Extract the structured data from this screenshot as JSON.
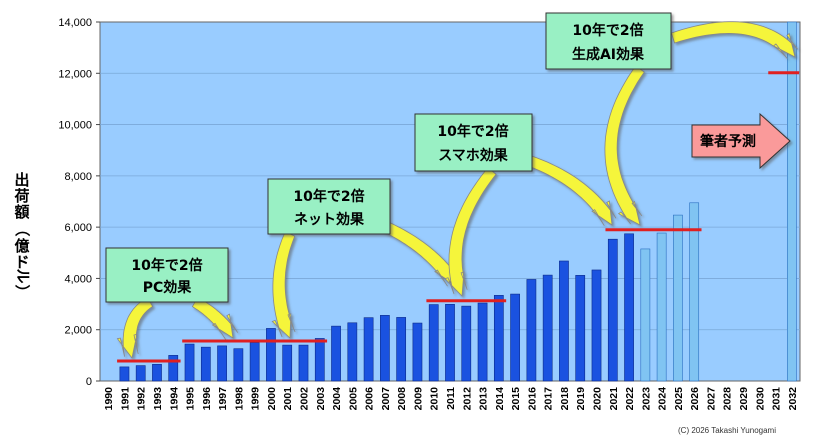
{
  "chart_data": {
    "type": "bar",
    "ylabel": "出荷額（億ドル）",
    "ylim": [
      0,
      14000
    ],
    "yticks": [
      0,
      2000,
      4000,
      6000,
      8000,
      10000,
      12000,
      14000
    ],
    "ytick_labels": [
      "0",
      "2,000",
      "4,000",
      "6,000",
      "8,000",
      "10,000",
      "12,000",
      "14,000"
    ],
    "categories": [
      "1990",
      "1991",
      "1992",
      "1993",
      "1994",
      "1995",
      "1996",
      "1997",
      "1998",
      "1999",
      "2000",
      "2001",
      "2002",
      "2003",
      "2004",
      "2005",
      "2006",
      "2007",
      "2008",
      "2009",
      "2010",
      "2011",
      "2012",
      "2013",
      "2014",
      "2015",
      "2016",
      "2017",
      "2018",
      "2019",
      "2020",
      "2021",
      "2022",
      "2023",
      "2024",
      "2025",
      "2026",
      "2027",
      "2028",
      "2029",
      "2030",
      "2031",
      "2032"
    ],
    "values": [
      null,
      550,
      600,
      650,
      1000,
      1440,
      1320,
      1370,
      1260,
      1500,
      2050,
      1400,
      1400,
      1660,
      2140,
      2270,
      2470,
      2560,
      2480,
      2260,
      2980,
      2990,
      2920,
      3040,
      3340,
      3390,
      3960,
      4130,
      4680,
      4120,
      4330,
      5530,
      5740,
      5150,
      5770,
      6470,
      6950,
      null,
      null,
      null,
      null,
      null,
      14000
    ],
    "forecast_from": "2023",
    "colors": {
      "background": "#99ccff",
      "bar": "#1a52e0",
      "bar_forecast": "#80c4f2",
      "level_line": "#e02020",
      "arrow": "#f5f53a",
      "label_box": "#99f0c4",
      "forecast_arrow": "#fa9a9a"
    },
    "level_lines": [
      {
        "from": "1991",
        "to": "1994",
        "value": 780
      },
      {
        "from": "1995",
        "to": "2003",
        "value": 1560
      },
      {
        "from": "2010",
        "to": "2014",
        "value": 3130
      },
      {
        "from": "2021",
        "to": "2026",
        "value": 5900
      },
      {
        "from": "2031",
        "to": "2032",
        "value": 12020
      }
    ],
    "annotations": [
      {
        "lines": [
          "10年で2倍",
          "PC効果"
        ]
      },
      {
        "lines": [
          "10年で2倍",
          "ネット効果"
        ]
      },
      {
        "lines": [
          "10年で2倍",
          "スマホ効果"
        ]
      },
      {
        "lines": [
          "10年で2倍",
          "生成AI効果"
        ]
      }
    ],
    "forecast_label": "筆者予測",
    "copyright": "(C) 2026 Takashi Yunogami"
  }
}
